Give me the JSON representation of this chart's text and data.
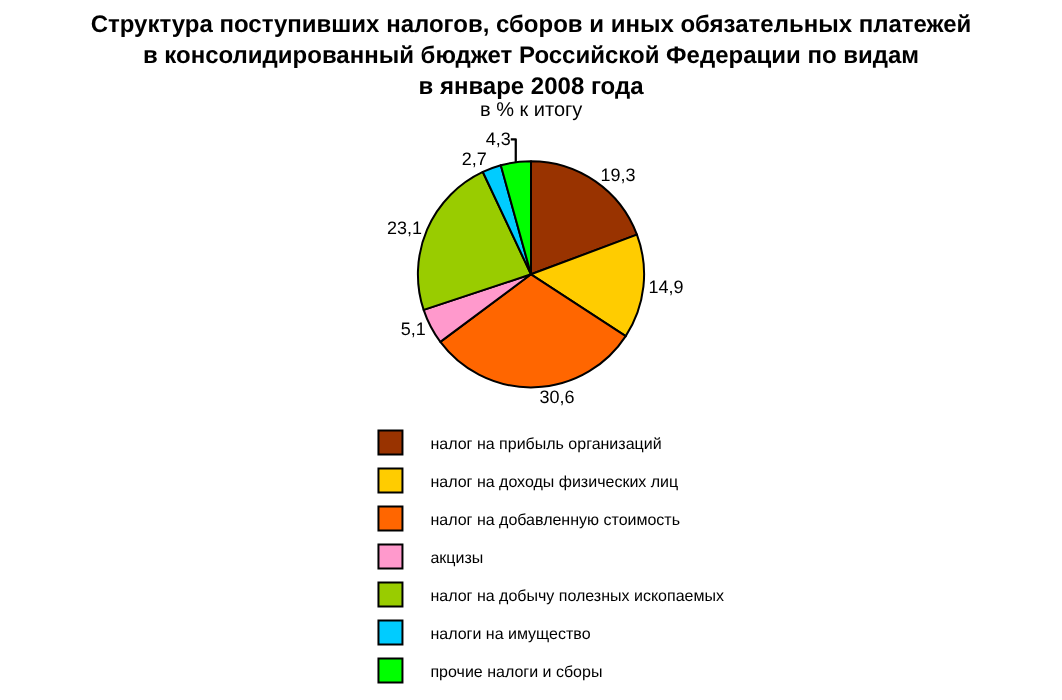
{
  "chart_data": {
    "type": "pie",
    "title": "Структура поступивших налогов, сборов и иных обязательных платежей\nв консолидированный бюджет Российской Федерации по видам\nв январе 2008 года",
    "subtitle": "в % к итогу",
    "categories": [
      "налог на прибыль организаций",
      "налог на доходы физических лиц",
      "налог на добавленную стоимость",
      "акцизы",
      "налог на добычу полезных ископаемых",
      "налоги на имущество",
      "прочие налоги и сборы"
    ],
    "values": [
      19.3,
      14.9,
      30.6,
      5.1,
      23.1,
      2.7,
      4.3
    ],
    "value_labels": [
      "19,3",
      "14,9",
      "30,6",
      "5,1",
      "23,1",
      "2,7",
      "4,3"
    ],
    "colors": [
      "#993300",
      "#ffcc00",
      "#ff6600",
      "#ff99cc",
      "#99cc00",
      "#00ccff",
      "#00ff00"
    ],
    "legend": "bottom"
  }
}
